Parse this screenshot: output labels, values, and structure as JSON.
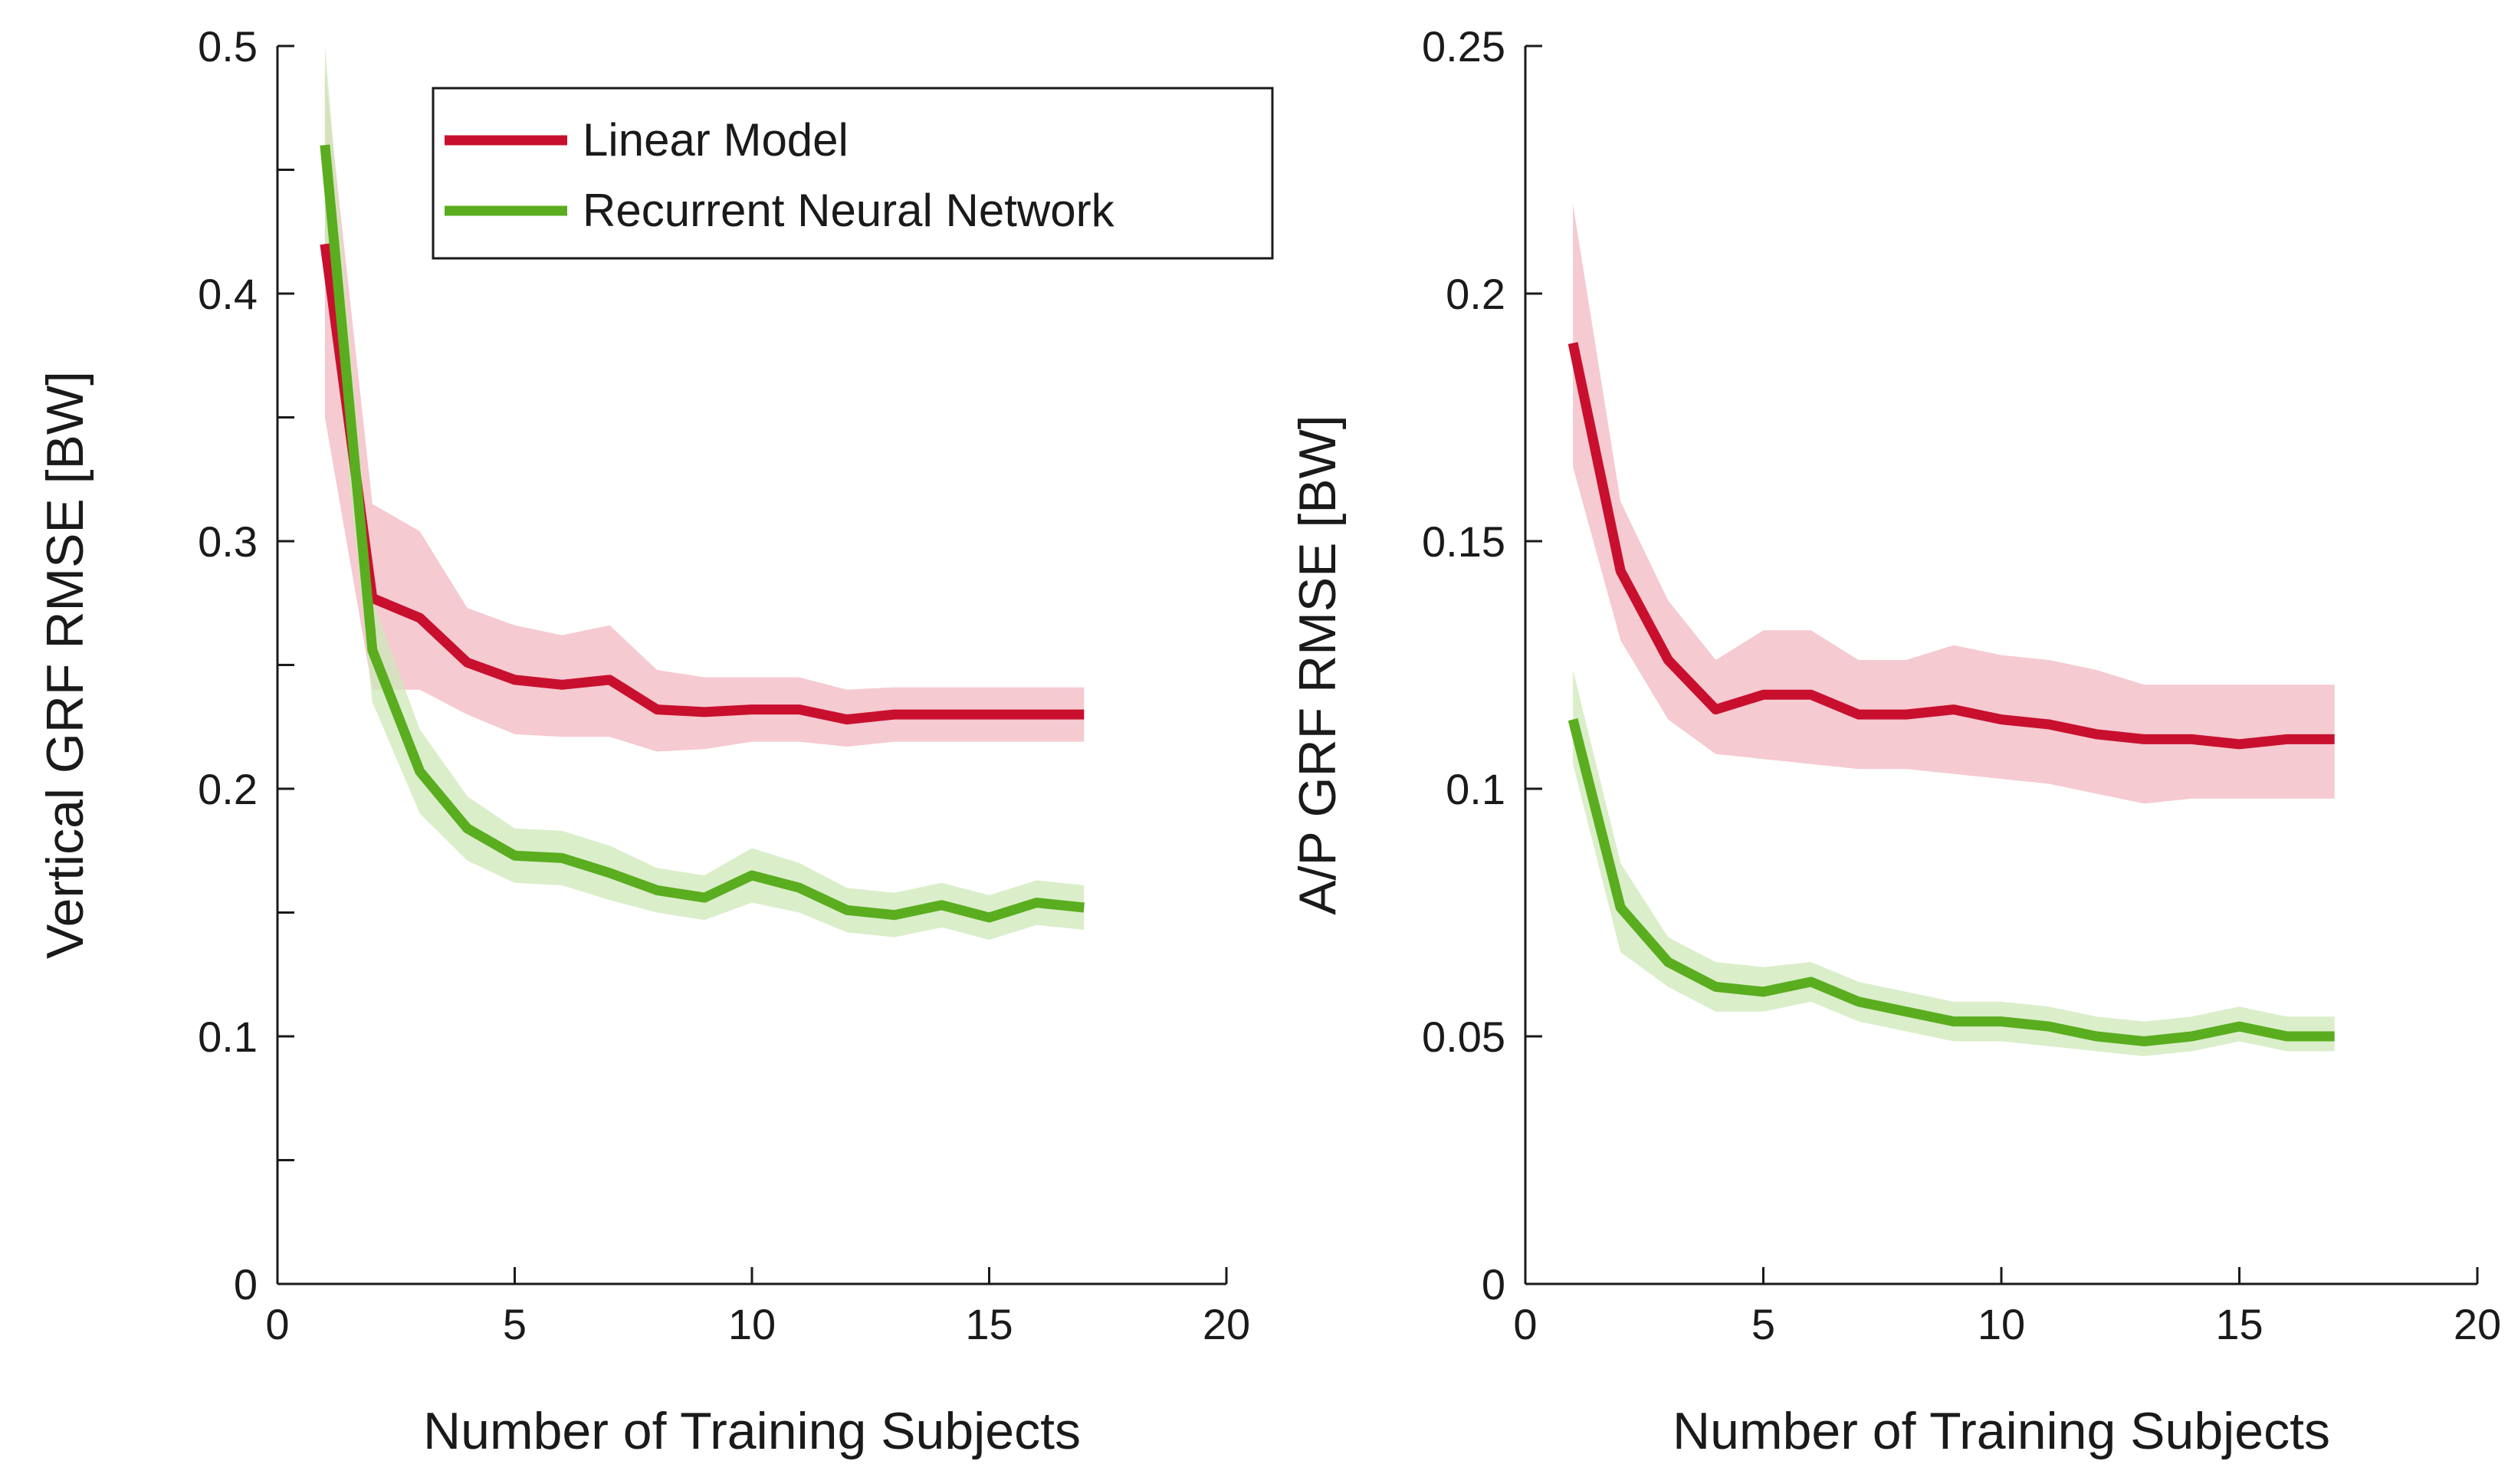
{
  "colors": {
    "linear": "#c8102e",
    "linear_band": "#f2b8c2",
    "rnn": "#5aad1f",
    "rnn_band": "#cde8b8",
    "axis": "#1a1a1a"
  },
  "legend": {
    "items": [
      {
        "name": "Linear Model",
        "color": "#c8102e"
      },
      {
        "name": "Recurrent Neural Network",
        "color": "#5aad1f"
      }
    ]
  },
  "chart_data": [
    {
      "type": "line",
      "title": "",
      "xlabel": "Number of Training Subjects",
      "ylabel": "Vertical GRF RMSE [BW]",
      "xlim": [
        0,
        20
      ],
      "ylim": [
        0,
        0.5
      ],
      "xticks": [
        0,
        5,
        10,
        15,
        20
      ],
      "xtick_labels": [
        "0",
        "5",
        "10",
        "15",
        "20"
      ],
      "yticks": [
        0,
        0.1,
        0.2,
        0.3,
        0.4,
        0.5
      ],
      "ytick_labels": [
        "0",
        "0.1",
        "0.2",
        "0.3",
        "0.4",
        "0.5"
      ],
      "yminor": [
        0.05,
        0.15,
        0.25,
        0.35,
        0.45
      ],
      "grid": false,
      "legend_position": "top-right",
      "x": [
        1,
        2,
        3,
        4,
        5,
        6,
        7,
        8,
        9,
        10,
        11,
        12,
        13,
        14,
        15,
        16,
        17
      ],
      "series": [
        {
          "name": "Linear Model",
          "values": [
            0.42,
            0.277,
            0.269,
            0.251,
            0.244,
            0.242,
            0.244,
            0.232,
            0.231,
            0.232,
            0.232,
            0.228,
            0.23,
            0.23,
            0.23,
            0.23,
            0.23
          ],
          "lower": [
            0.35,
            0.24,
            0.24,
            0.23,
            0.222,
            0.221,
            0.221,
            0.215,
            0.216,
            0.219,
            0.219,
            0.217,
            0.219,
            0.219,
            0.219,
            0.219,
            0.219
          ],
          "upper": [
            0.49,
            0.315,
            0.304,
            0.273,
            0.266,
            0.262,
            0.266,
            0.248,
            0.245,
            0.245,
            0.245,
            0.24,
            0.241,
            0.241,
            0.241,
            0.241,
            0.241
          ]
        },
        {
          "name": "Recurrent Neural Network",
          "values": [
            0.46,
            0.256,
            0.207,
            0.184,
            0.173,
            0.172,
            0.166,
            0.159,
            0.156,
            0.165,
            0.16,
            0.151,
            0.149,
            0.153,
            0.148,
            0.154,
            0.152
          ],
          "lower": [
            0.42,
            0.235,
            0.19,
            0.171,
            0.162,
            0.161,
            0.155,
            0.15,
            0.147,
            0.154,
            0.15,
            0.142,
            0.14,
            0.144,
            0.139,
            0.145,
            0.143
          ],
          "upper": [
            0.5,
            0.276,
            0.224,
            0.197,
            0.184,
            0.183,
            0.177,
            0.168,
            0.165,
            0.176,
            0.17,
            0.16,
            0.158,
            0.162,
            0.157,
            0.163,
            0.161
          ]
        }
      ]
    },
    {
      "type": "line",
      "title": "",
      "xlabel": "Number of Training Subjects",
      "ylabel": "A/P GRF RMSE [BW]",
      "xlim": [
        0,
        20
      ],
      "ylim": [
        0,
        0.25
      ],
      "xticks": [
        0,
        5,
        10,
        15,
        20
      ],
      "xtick_labels": [
        "0",
        "5",
        "10",
        "15",
        "20"
      ],
      "yticks": [
        0,
        0.05,
        0.1,
        0.15,
        0.2,
        0.25
      ],
      "ytick_labels": [
        "0",
        "0.05",
        "0.1",
        "0.15",
        "0.2",
        "0.25"
      ],
      "yminor": [],
      "grid": false,
      "x": [
        1,
        2,
        3,
        4,
        5,
        6,
        7,
        8,
        9,
        10,
        11,
        12,
        13,
        14,
        15,
        16,
        17
      ],
      "series": [
        {
          "name": "Linear Model",
          "values": [
            0.19,
            0.144,
            0.126,
            0.116,
            0.119,
            0.119,
            0.115,
            0.115,
            0.116,
            0.114,
            0.113,
            0.111,
            0.11,
            0.11,
            0.109,
            0.11,
            0.11
          ],
          "lower": [
            0.165,
            0.13,
            0.114,
            0.107,
            0.106,
            0.105,
            0.104,
            0.104,
            0.103,
            0.102,
            0.101,
            0.099,
            0.097,
            0.098,
            0.098,
            0.098,
            0.098
          ],
          "upper": [
            0.218,
            0.158,
            0.138,
            0.126,
            0.132,
            0.132,
            0.126,
            0.126,
            0.129,
            0.127,
            0.126,
            0.124,
            0.121,
            0.121,
            0.121,
            0.121,
            0.121
          ]
        },
        {
          "name": "Recurrent Neural Network",
          "values": [
            0.114,
            0.076,
            0.065,
            0.06,
            0.059,
            0.061,
            0.057,
            0.055,
            0.053,
            0.053,
            0.052,
            0.05,
            0.049,
            0.05,
            0.052,
            0.05,
            0.05
          ],
          "lower": [
            0.105,
            0.067,
            0.06,
            0.055,
            0.055,
            0.057,
            0.053,
            0.051,
            0.049,
            0.049,
            0.048,
            0.047,
            0.046,
            0.047,
            0.049,
            0.047,
            0.047
          ],
          "upper": [
            0.124,
            0.085,
            0.07,
            0.065,
            0.064,
            0.065,
            0.061,
            0.059,
            0.057,
            0.057,
            0.056,
            0.054,
            0.053,
            0.054,
            0.056,
            0.054,
            0.054
          ]
        }
      ]
    }
  ]
}
